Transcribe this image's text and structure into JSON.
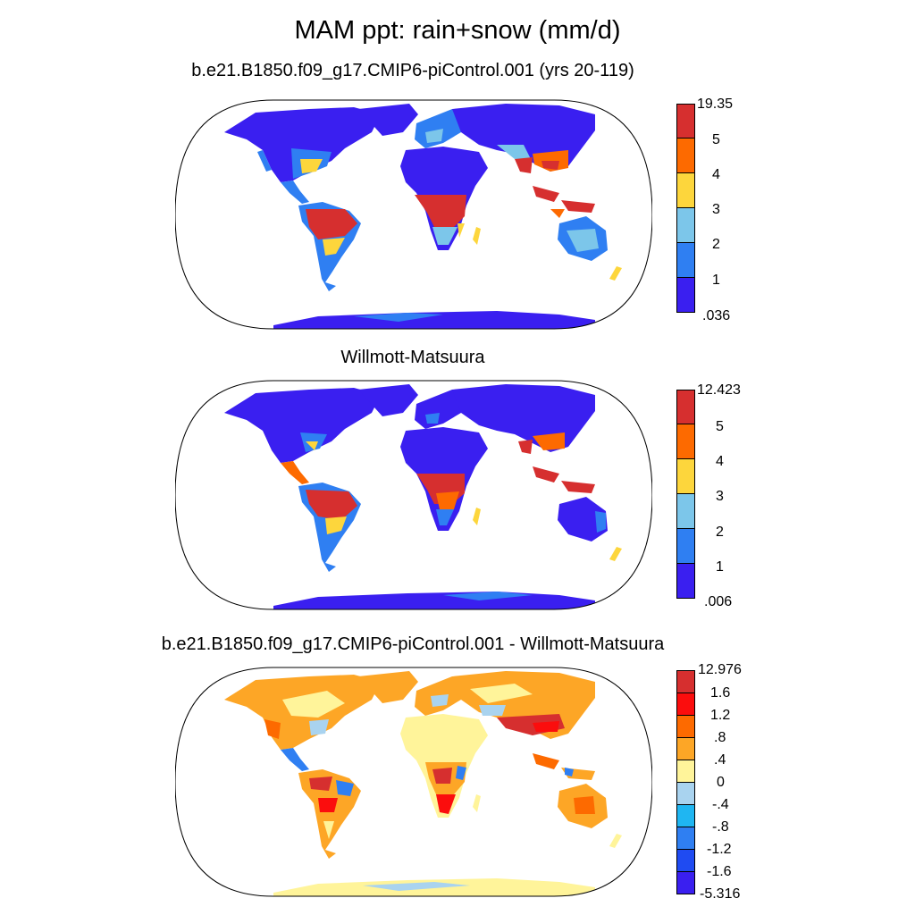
{
  "title": "MAM ppt: rain+snow (mm/d)",
  "panels": [
    {
      "title": "b.e21.B1850.f09_g17.CMIP6-piControl.001 (yrs 20-119)",
      "colorbar": {
        "labels": [
          "19.35",
          "5",
          "4",
          "3",
          "2",
          "1",
          ".036"
        ],
        "colors": [
          "#d62f2f",
          "#fd6a00",
          "#fdd63c",
          "#7cc6ea",
          "#2f7ff2",
          "#3a1ff0"
        ]
      }
    },
    {
      "title": "Willmott-Matsuura",
      "colorbar": {
        "labels": [
          "12.423",
          "5",
          "4",
          "3",
          "2",
          "1",
          ".006"
        ],
        "colors": [
          "#d62f2f",
          "#fd6a00",
          "#fdd63c",
          "#7cc6ea",
          "#2f7ff2",
          "#3a1ff0"
        ]
      }
    },
    {
      "title": "b.e21.B1850.f09_g17.CMIP6-piControl.001 - Willmott-Matsuura",
      "colorbar": {
        "labels": [
          "12.976",
          "1.6",
          "1.2",
          ".8",
          ".4",
          "0",
          "-.4",
          "-.8",
          "-1.2",
          "-1.6",
          "-5.316"
        ],
        "colors": [
          "#d62f2f",
          "#fb0d0d",
          "#fd6a00",
          "#fda626",
          "#fff49a",
          "#a9d3ef",
          "#1fb6f2",
          "#2f7ff2",
          "#1f4bf2",
          "#3a1ff0"
        ]
      }
    }
  ]
}
